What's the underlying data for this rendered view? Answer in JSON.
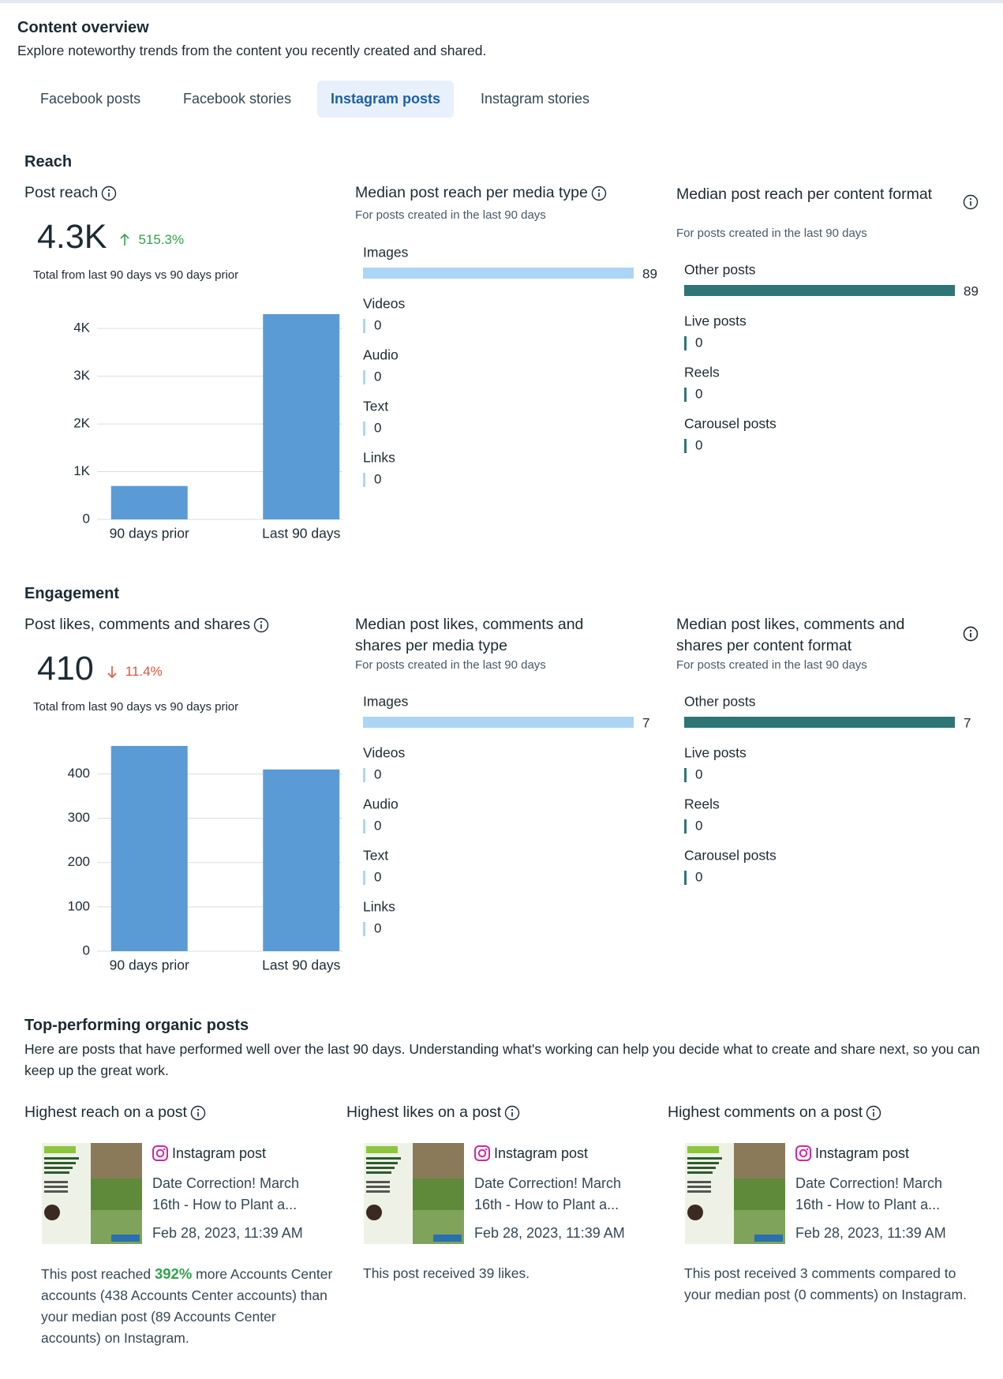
{
  "header": {
    "title": "Content overview",
    "subtitle": "Explore noteworthy trends from the content you recently created and shared."
  },
  "tabs": {
    "items": [
      "Facebook posts",
      "Facebook stories",
      "Instagram posts",
      "Instagram stories"
    ],
    "active": 2
  },
  "sections": [
    {
      "heading": "Reach",
      "total": {
        "title": "Post reach",
        "value": "4.3K",
        "change": "515.3%",
        "direction": "up",
        "note": "Total from last 90 days vs 90 days prior"
      },
      "comparison": {
        "type": "bar",
        "categories": [
          "90 days prior",
          "Last 90 days"
        ],
        "values": [
          700,
          4300
        ],
        "color": "#5b9bd5",
        "ylim": [
          0,
          4300
        ],
        "yticks": [
          0,
          {
            "value": 1000,
            "label": "1K"
          },
          {
            "value": 2000,
            "label": "2K"
          },
          {
            "value": 3000,
            "label": "3K"
          },
          {
            "value": 4000,
            "label": "4K"
          }
        ],
        "grid": true
      },
      "by_media_type": {
        "type": "hbar",
        "title": "Median post reach per media type",
        "subtitle": "For posts created in the last 90 days",
        "categories": [
          "Images",
          "Videos",
          "Audio",
          "Text",
          "Links"
        ],
        "values": [
          89,
          0,
          0,
          0,
          0
        ],
        "xlim": [
          0,
          89
        ],
        "color": "#acd5f5"
      },
      "by_content_format": {
        "type": "hbar",
        "title": "Median post reach per content format",
        "subtitle": "For posts created in the last 90 days",
        "categories": [
          "Other posts",
          "Live posts",
          "Reels",
          "Carousel posts"
        ],
        "values": [
          89,
          0,
          0,
          0
        ],
        "xlim": [
          0,
          89
        ],
        "color": "#2f7575"
      }
    },
    {
      "heading": "Engagement",
      "total": {
        "title": "Post likes, comments and shares",
        "value": "410",
        "change": "11.4%",
        "direction": "down",
        "note": "Total from last 90 days vs 90 days prior"
      },
      "comparison": {
        "type": "bar",
        "categories": [
          "90 days prior",
          "Last 90 days"
        ],
        "values": [
          463,
          410
        ],
        "color": "#5b9bd5",
        "ylim": [
          0,
          463
        ],
        "yticks": [
          0,
          100,
          200,
          300,
          400
        ],
        "grid": true
      },
      "by_media_type": {
        "type": "hbar",
        "title": "Median post likes, comments and shares per media type",
        "subtitle": "For posts created in the last 90 days",
        "categories": [
          "Images",
          "Videos",
          "Audio",
          "Text",
          "Links"
        ],
        "values": [
          7,
          0,
          0,
          0,
          0
        ],
        "xlim": [
          0,
          7
        ],
        "color": "#acd5f5"
      },
      "by_content_format": {
        "type": "hbar",
        "title": "Median post likes, comments and shares per content format",
        "subtitle": "For posts created in the last 90 days",
        "categories": [
          "Other posts",
          "Live posts",
          "Reels",
          "Carousel posts"
        ],
        "values": [
          7,
          0,
          0,
          0
        ],
        "xlim": [
          0,
          7
        ],
        "color": "#2f7575"
      }
    }
  ],
  "top_posts": {
    "heading": "Top-performing organic posts",
    "description": "Here are posts that have performed well over the last 90 days. Understanding what's working can help you decide what to create and share next, so you can keep up the great work.",
    "cards": [
      {
        "title": "Highest reach on a post",
        "post_type": "Instagram post",
        "caption": "Date Correction! March 16th - How to Plant a...",
        "date": "Feb 28, 2023, 11:39 AM",
        "summary": [
          "This post reached ",
          "392%",
          " more Accounts Center accounts (438 Accounts Center accounts) than your median post (89 Accounts Center accounts) on Instagram."
        ],
        "highlight": 1
      },
      {
        "title": "Highest likes on a post",
        "post_type": "Instagram post",
        "caption": "Date Correction! March 16th - How to Plant a...",
        "date": "Feb 28, 2023, 11:39 AM",
        "summary": [
          "This post received 39 likes."
        ]
      },
      {
        "title": "Highest comments on a post",
        "post_type": "Instagram post",
        "caption": "Date Correction! March 16th - How to Plant a...",
        "date": "Feb 28, 2023, 11:39 AM",
        "summary": [
          "This post received 3 comments compared to your median post (0 comments) on Instagram."
        ]
      }
    ]
  }
}
